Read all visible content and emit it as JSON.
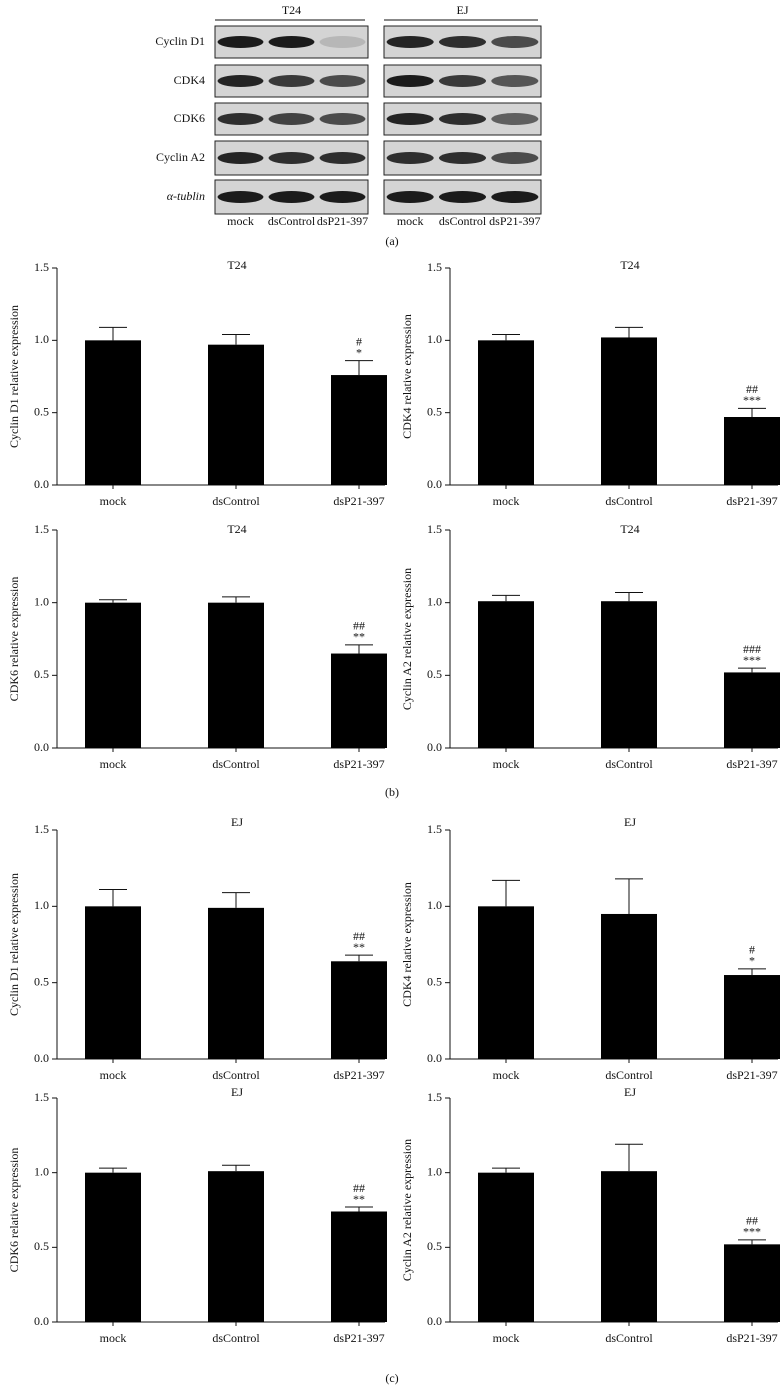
{
  "blot": {
    "groups": [
      "T24",
      "EJ"
    ],
    "rows": [
      "Cyclin D1",
      "CDK4",
      "CDK6",
      "Cyclin A2",
      "α-tublin"
    ],
    "lanes": [
      "mock",
      "dsControl",
      "dsP21-397"
    ],
    "panel_label": "(a)"
  },
  "panel_labels": [
    "(b)",
    "(c)"
  ],
  "chart_data": [
    {
      "type": "bar",
      "title": "T24",
      "y_label": "Cyclin D1 relative expression",
      "categories": [
        "mock",
        "dsControl",
        "dsP21-397"
      ],
      "values": [
        1.0,
        0.97,
        0.76
      ],
      "errors": [
        0.09,
        0.07,
        0.1
      ],
      "value_annotations": [
        null,
        null,
        [
          "#",
          "*"
        ]
      ],
      "color": "#000000",
      "ylim": [
        0,
        1.5
      ],
      "yticks": [
        {
          "value": 0,
          "label": "0.0"
        },
        0.5,
        {
          "value": 1,
          "label": "1.0"
        },
        1.5
      ]
    },
    {
      "type": "bar",
      "title": "T24",
      "y_label": "CDK4 relative expression",
      "categories": [
        "mock",
        "dsControl",
        "dsP21-397"
      ],
      "values": [
        1.0,
        1.02,
        0.47
      ],
      "errors": [
        0.04,
        0.07,
        0.06
      ],
      "value_annotations": [
        null,
        null,
        [
          "##",
          "***"
        ]
      ],
      "color": "#000000",
      "ylim": [
        0,
        1.5
      ],
      "yticks": [
        {
          "value": 0,
          "label": "0.0"
        },
        0.5,
        {
          "value": 1,
          "label": "1.0"
        },
        1.5
      ]
    },
    {
      "type": "bar",
      "title": "T24",
      "y_label": "CDK6 relative expression",
      "categories": [
        "mock",
        "dsControl",
        "dsP21-397"
      ],
      "values": [
        1.0,
        1.0,
        0.65
      ],
      "errors": [
        0.02,
        0.04,
        0.06
      ],
      "value_annotations": [
        null,
        null,
        [
          "##",
          "**"
        ]
      ],
      "color": "#000000",
      "ylim": [
        0,
        1.5
      ],
      "yticks": [
        {
          "value": 0,
          "label": "0.0"
        },
        0.5,
        {
          "value": 1,
          "label": "1.0"
        },
        1.5
      ]
    },
    {
      "type": "bar",
      "title": "T24",
      "y_label": "Cyclin A2 relative expression",
      "categories": [
        "mock",
        "dsControl",
        "dsP21-397"
      ],
      "values": [
        1.01,
        1.01,
        0.52
      ],
      "errors": [
        0.04,
        0.06,
        0.03
      ],
      "value_annotations": [
        null,
        null,
        [
          "###",
          "***"
        ]
      ],
      "color": "#000000",
      "ylim": [
        0,
        1.5
      ],
      "yticks": [
        {
          "value": 0,
          "label": "0.0"
        },
        0.5,
        {
          "value": 1,
          "label": "1.0"
        },
        1.5
      ]
    },
    {
      "type": "bar",
      "title": "EJ",
      "y_label": "Cyclin D1 relative expression",
      "categories": [
        "mock",
        "dsControl",
        "dsP21-397"
      ],
      "values": [
        1.0,
        0.99,
        0.64
      ],
      "errors": [
        0.11,
        0.1,
        0.04
      ],
      "value_annotations": [
        null,
        null,
        [
          "##",
          "**"
        ]
      ],
      "color": "#000000",
      "ylim": [
        0,
        1.5
      ],
      "yticks": [
        {
          "value": 0,
          "label": "0.0"
        },
        0.5,
        {
          "value": 1,
          "label": "1.0"
        },
        1.5
      ]
    },
    {
      "type": "bar",
      "title": "EJ",
      "y_label": "CDK4 relative expression",
      "categories": [
        "mock",
        "dsControl",
        "dsP21-397"
      ],
      "values": [
        1.0,
        0.95,
        0.55
      ],
      "errors": [
        0.17,
        0.23,
        0.04
      ],
      "value_annotations": [
        null,
        null,
        [
          "#",
          "*"
        ]
      ],
      "color": "#000000",
      "ylim": [
        0,
        1.5
      ],
      "yticks": [
        {
          "value": 0,
          "label": "0.0"
        },
        0.5,
        {
          "value": 1,
          "label": "1.0"
        },
        1.5
      ]
    },
    {
      "type": "bar",
      "title": "EJ",
      "y_label": "CDK6 relative expression",
      "categories": [
        "mock",
        "dsControl",
        "dsP21-397"
      ],
      "values": [
        1.0,
        1.01,
        0.74
      ],
      "errors": [
        0.03,
        0.04,
        0.03
      ],
      "value_annotations": [
        null,
        null,
        [
          "##",
          "**"
        ]
      ],
      "color": "#000000",
      "ylim": [
        0,
        1.5
      ],
      "yticks": [
        {
          "value": 0,
          "label": "0.0"
        },
        0.5,
        {
          "value": 1,
          "label": "1.0"
        },
        1.5
      ]
    },
    {
      "type": "bar",
      "title": "EJ",
      "y_label": "Cyclin A2 relative expression",
      "categories": [
        "mock",
        "dsControl",
        "dsP21-397"
      ],
      "values": [
        1.0,
        1.01,
        0.52
      ],
      "errors": [
        0.03,
        0.18,
        0.03
      ],
      "value_annotations": [
        null,
        null,
        [
          "##",
          "***"
        ]
      ],
      "color": "#000000",
      "ylim": [
        0,
        1.5
      ],
      "yticks": [
        {
          "value": 0,
          "label": "0.0"
        },
        0.5,
        {
          "value": 1,
          "label": "1.0"
        },
        1.5
      ]
    }
  ]
}
